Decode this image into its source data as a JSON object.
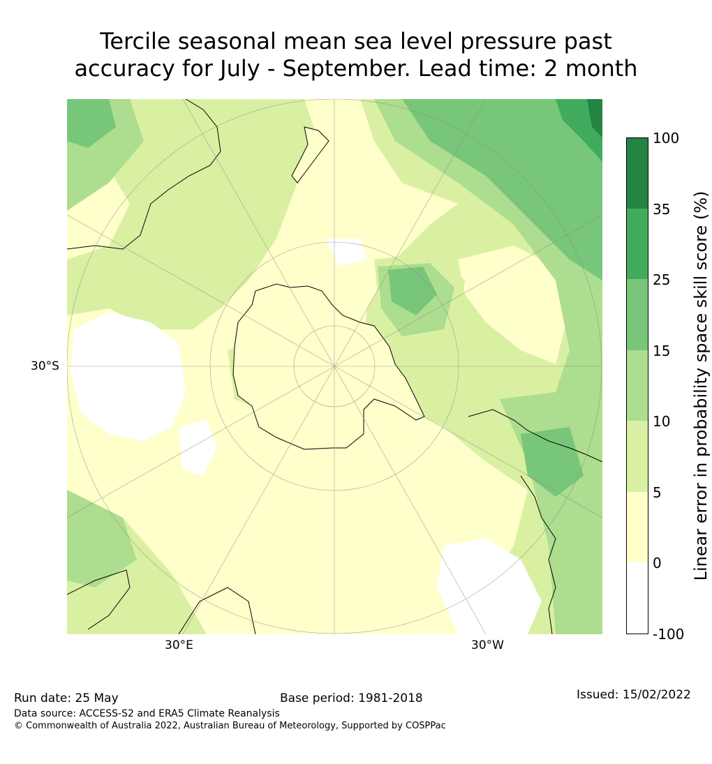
{
  "title": {
    "line1": "Tercile seasonal mean sea level pressure past",
    "line2": "accuracy for July - September. Lead time: 2 month"
  },
  "map": {
    "projection": "south polar stereographic",
    "lat_labels": [
      {
        "label": "30°S"
      }
    ],
    "lon_labels": [
      {
        "label": "30°E"
      },
      {
        "label": "30°W"
      }
    ],
    "land_color": "#ffffff",
    "coastline_color": "#000000"
  },
  "colorbar": {
    "label": "Linear error in probability space skill score (%)",
    "ticks": [
      "100",
      "35",
      "25",
      "15",
      "10",
      "5",
      "0",
      "-100"
    ],
    "bins": [
      {
        "range": "-100 to 0",
        "color": "#ffffff"
      },
      {
        "range": "0 to 5",
        "color": "#ffffcc"
      },
      {
        "range": "5 to 10",
        "color": "#d9f0a3"
      },
      {
        "range": "10 to 15",
        "color": "#addd8e"
      },
      {
        "range": "15 to 25",
        "color": "#78c679"
      },
      {
        "range": "25 to 35",
        "color": "#41ab5d"
      },
      {
        "range": "35 to 100",
        "color": "#238443"
      }
    ]
  },
  "footer": {
    "run_date": "Run date: 25 May",
    "base_period": "Base period: 1981-2018",
    "issued": "Issued: 15/02/2022",
    "data_source": "Data source: ACCESS-S2 and ERA5 Climate Reanalysis",
    "copyright": "© Commonwealth of Australia 2022, Australian Bureau of Meteorology, Supported by COSPPac"
  }
}
